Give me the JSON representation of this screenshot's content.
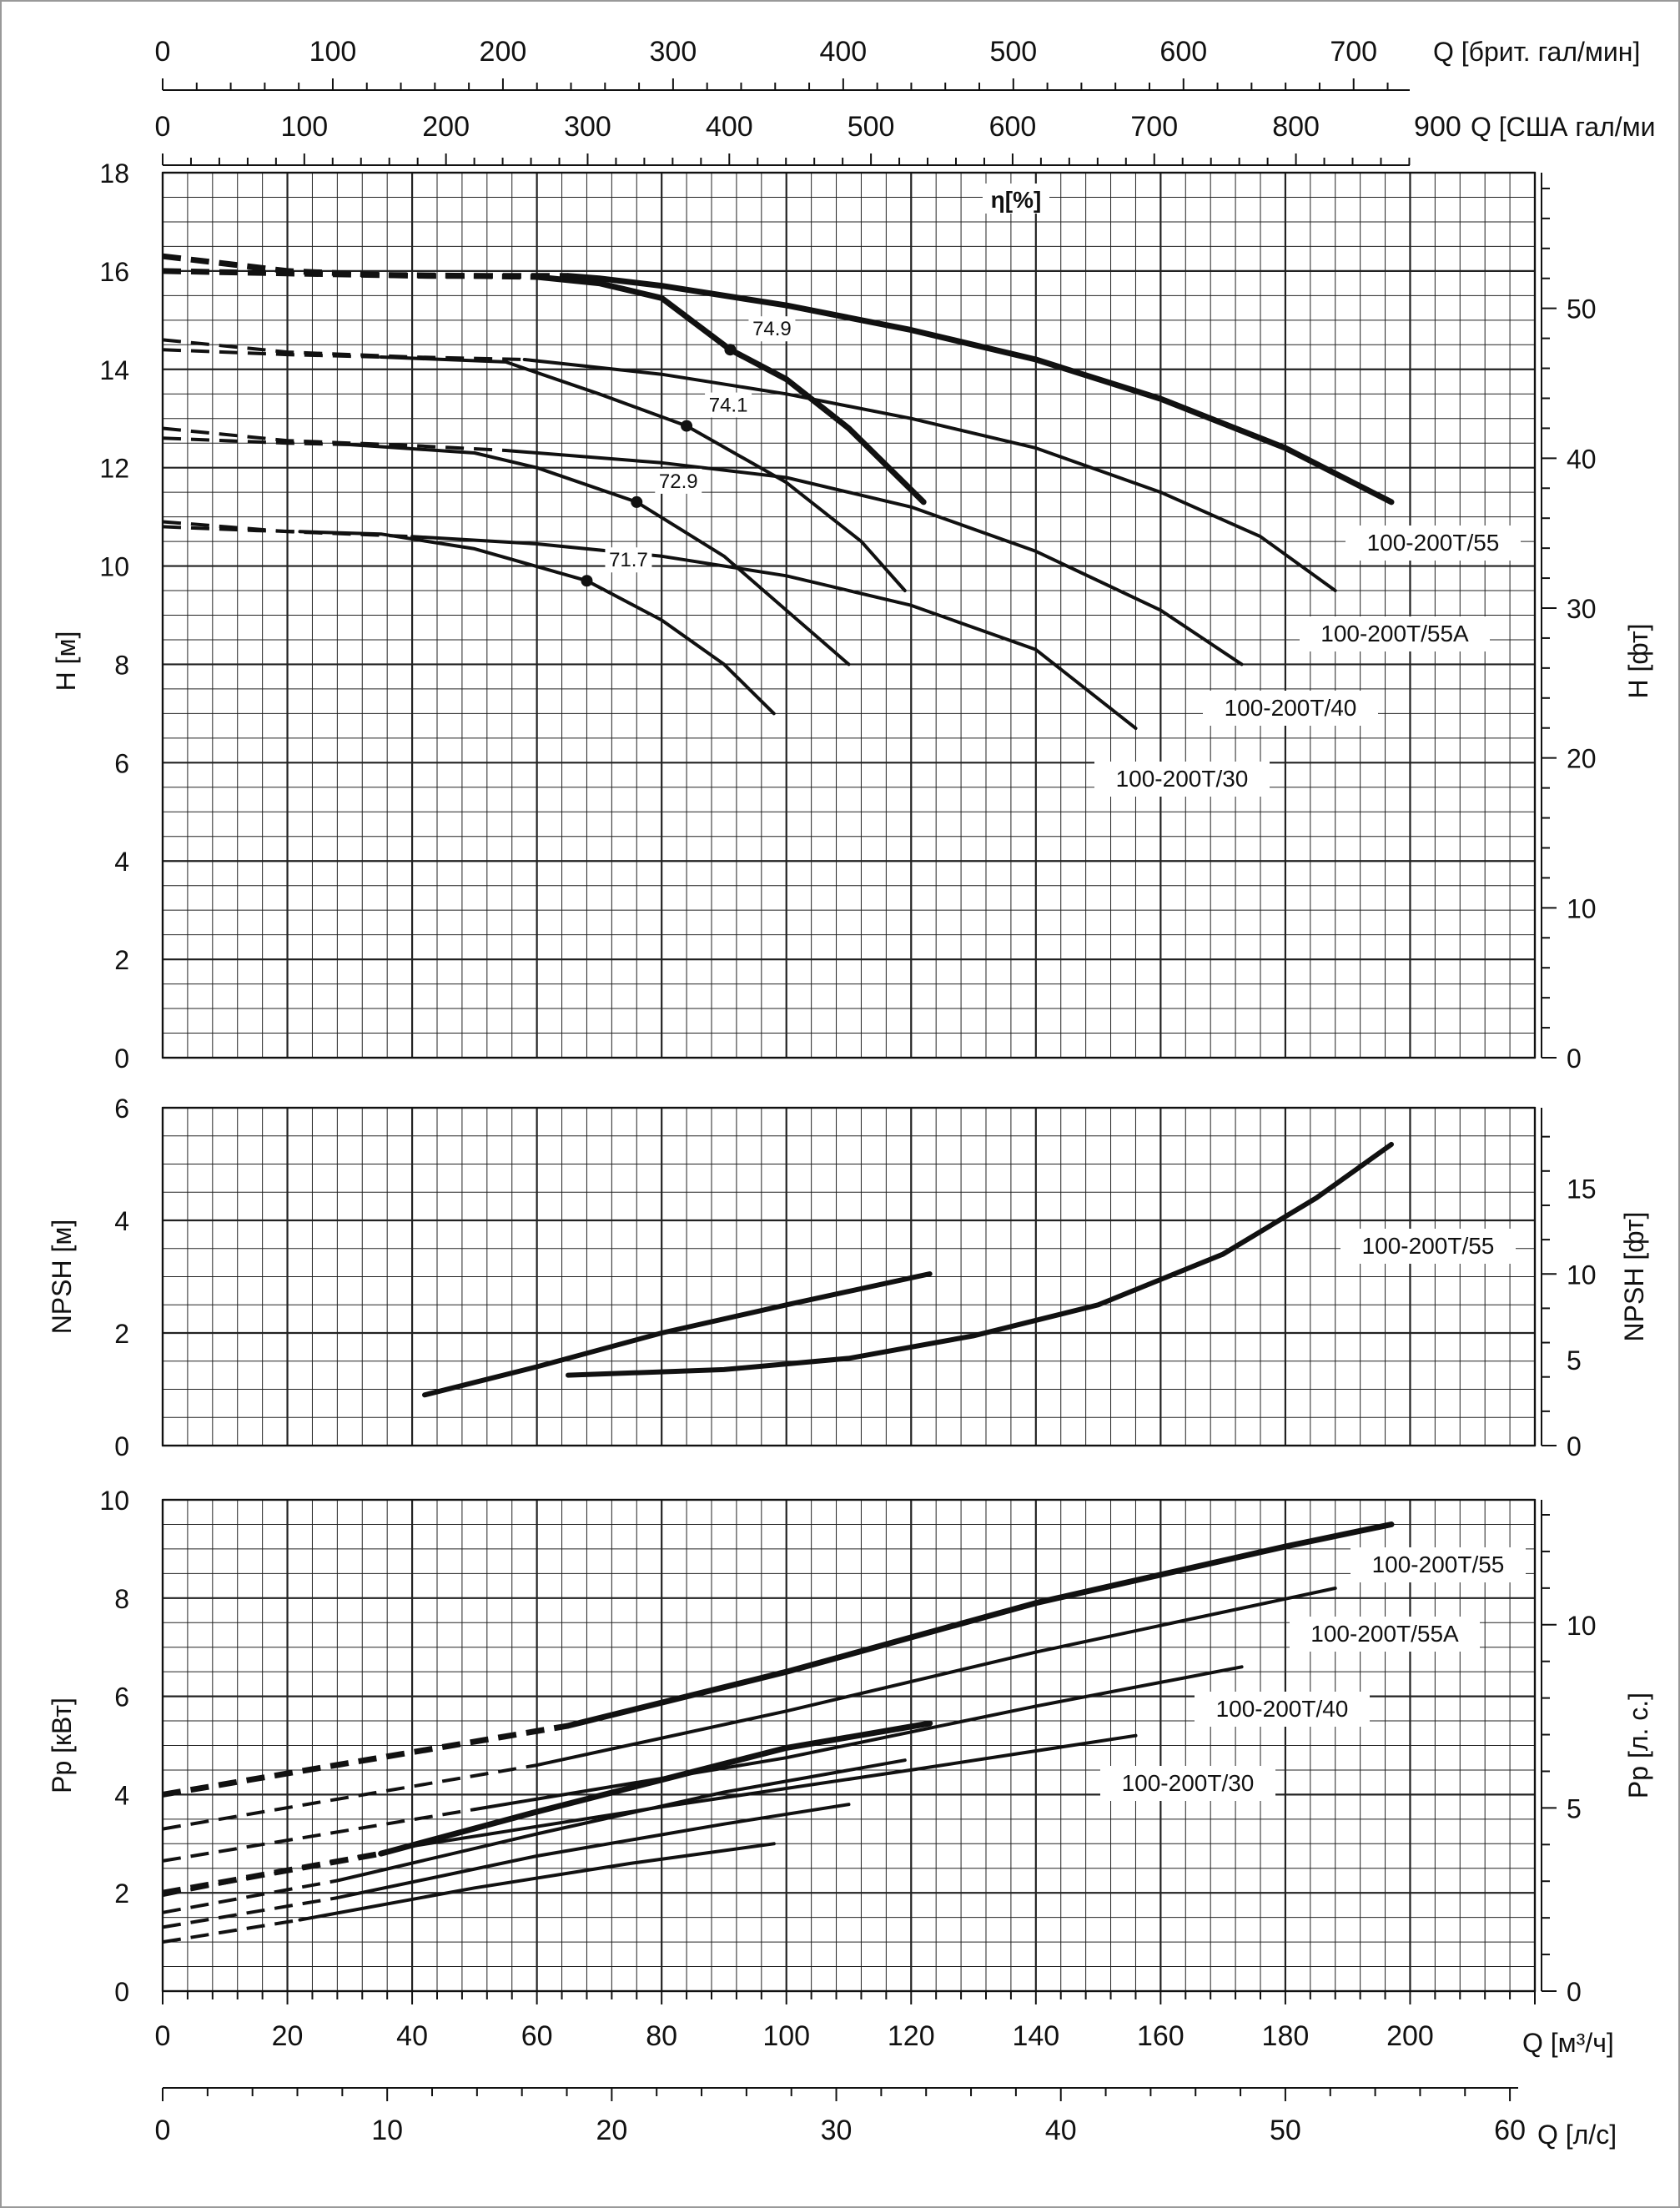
{
  "chart_data": {
    "type": "line",
    "top_axes": {
      "uk_gpm": {
        "label": "Q [брит. гал/мин]",
        "ticks": [
          "0",
          "100",
          "200",
          "300",
          "400",
          "500",
          "600",
          "700"
        ],
        "per_m3h": 3.666
      },
      "us_gpm": {
        "label": "Q [США гал/ми",
        "ticks": [
          "0",
          "100",
          "200",
          "300",
          "400",
          "500",
          "600",
          "700",
          "800",
          "900"
        ],
        "per_m3h": 4.403
      }
    },
    "bottom_axes": {
      "m3h": {
        "label": "Q [м³/ч]",
        "ticks": [
          "0",
          "20",
          "40",
          "60",
          "80",
          "100",
          "120",
          "140",
          "160",
          "180",
          "200"
        ],
        "xlim": [
          0,
          220
        ]
      },
      "ls": {
        "label": "Q [л/с]",
        "ticks": [
          "0",
          "10",
          "20",
          "30",
          "40",
          "50",
          "60"
        ]
      }
    },
    "head_chart": {
      "ylabel": "H [м]",
      "ylabel_right": "H [фт]",
      "ylim": [
        0,
        18
      ],
      "yticks": [
        "0",
        "2",
        "4",
        "6",
        "8",
        "10",
        "12",
        "14",
        "16",
        "18"
      ],
      "yticks_right": [
        "0",
        "10",
        "20",
        "30",
        "40",
        "50"
      ],
      "efficiency_label": "η[%]",
      "series": [
        {
          "name": "100-200T/55",
          "bold": true,
          "dash": [
            [
              0,
              16.0
            ],
            [
              20,
              15.95
            ],
            [
              43,
              15.9
            ],
            [
              65,
              15.9
            ]
          ],
          "solid": [
            [
              65,
              15.9
            ],
            [
              70,
              15.85
            ],
            [
              80,
              15.7
            ],
            [
              100,
              15.3
            ],
            [
              120,
              14.8
            ],
            [
              140,
              14.2
            ],
            [
              160,
              13.4
            ],
            [
              180,
              12.4
            ],
            [
              197,
              11.3
            ]
          ],
          "dash2": [
            [
              0,
              16.3
            ],
            [
              10,
              16.15
            ],
            [
              20,
              16.0
            ],
            [
              35,
              15.92
            ],
            [
              50,
              15.9
            ],
            [
              60,
              15.88
            ]
          ],
          "solid2": [
            [
              60,
              15.88
            ],
            [
              70,
              15.75
            ],
            [
              80,
              15.45
            ],
            [
              91,
              14.4
            ],
            [
              100,
              13.8
            ],
            [
              110,
              12.8
            ],
            [
              122,
              11.3
            ]
          ]
        },
        {
          "name": "100-200T/55A",
          "bold": false,
          "dash": [
            [
              0,
              14.6
            ],
            [
              20,
              14.35
            ],
            [
              40,
              14.25
            ],
            [
              58,
              14.2
            ]
          ],
          "solid": [
            [
              58,
              14.2
            ],
            [
              80,
              13.9
            ],
            [
              100,
              13.5
            ],
            [
              120,
              13.0
            ],
            [
              140,
              12.4
            ],
            [
              160,
              11.5
            ],
            [
              176,
              10.6
            ],
            [
              188,
              9.5
            ]
          ],
          "dash2": [
            [
              0,
              14.4
            ],
            [
              20,
              14.3
            ],
            [
              35,
              14.25
            ]
          ],
          "solid2": [
            [
              35,
              14.25
            ],
            [
              55,
              14.15
            ],
            [
              70,
              13.5
            ],
            [
              84,
              12.85
            ],
            [
              100,
              11.7
            ],
            [
              112,
              10.5
            ],
            [
              119,
              9.5
            ]
          ]
        },
        {
          "name": "100-200T/40",
          "bold": false,
          "dash": [
            [
              0,
              12.8
            ],
            [
              20,
              12.55
            ],
            [
              40,
              12.45
            ],
            [
              55,
              12.35
            ]
          ],
          "solid": [
            [
              55,
              12.35
            ],
            [
              80,
              12.1
            ],
            [
              100,
              11.8
            ],
            [
              120,
              11.2
            ],
            [
              140,
              10.3
            ],
            [
              160,
              9.1
            ],
            [
              173,
              8.0
            ]
          ],
          "dash2": [
            [
              0,
              12.6
            ],
            [
              20,
              12.5
            ],
            [
              30,
              12.47
            ]
          ],
          "solid2": [
            [
              30,
              12.47
            ],
            [
              50,
              12.3
            ],
            [
              60,
              12.0
            ],
            [
              76,
              11.3
            ],
            [
              90,
              10.2
            ],
            [
              100,
              9.1
            ],
            [
              110,
              8.0
            ]
          ]
        },
        {
          "name": "100-200T/30",
          "bold": false,
          "dash": [
            [
              0,
              10.9
            ],
            [
              20,
              10.7
            ],
            [
              40,
              10.6
            ]
          ],
          "solid": [
            [
              40,
              10.6
            ],
            [
              60,
              10.45
            ],
            [
              80,
              10.2
            ],
            [
              100,
              9.8
            ],
            [
              120,
              9.2
            ],
            [
              140,
              8.3
            ],
            [
              156,
              6.7
            ]
          ],
          "dash2": [
            [
              0,
              10.8
            ],
            [
              15,
              10.72
            ],
            [
              22,
              10.7
            ]
          ],
          "solid2": [
            [
              22,
              10.7
            ],
            [
              35,
              10.65
            ],
            [
              50,
              10.35
            ],
            [
              68,
              9.7
            ],
            [
              80,
              8.9
            ],
            [
              90,
              8.0
            ],
            [
              98,
              7.0
            ]
          ]
        }
      ],
      "efficiency_points": [
        {
          "label": "74.9",
          "x": 91,
          "y": 14.4
        },
        {
          "label": "74.1",
          "x": 84,
          "y": 12.85
        },
        {
          "label": "72.9",
          "x": 76,
          "y": 11.3
        },
        {
          "label": "71.7",
          "x": 68,
          "y": 9.7
        }
      ],
      "curve_labels": [
        "100-200T/55",
        "100-200T/55A",
        "100-200T/40",
        "100-200T/30"
      ]
    },
    "npsh_chart": {
      "ylabel": "NPSH [м]",
      "ylabel_right": "NPSH [фт]",
      "ylim": [
        0,
        6
      ],
      "yticks": [
        "0",
        "2",
        "4",
        "6"
      ],
      "yticks_right": [
        "0",
        "5",
        "10",
        "15"
      ],
      "series": [
        {
          "name": "100-200T/55",
          "points": [
            [
              42,
              0.9
            ],
            [
              60,
              1.4
            ],
            [
              80,
              2.0
            ],
            [
              100,
              2.5
            ],
            [
              123,
              3.05
            ]
          ]
        },
        {
          "name": "",
          "points": [
            [
              65,
              1.25
            ],
            [
              90,
              1.35
            ],
            [
              110,
              1.55
            ],
            [
              130,
              1.95
            ],
            [
              150,
              2.5
            ],
            [
              170,
              3.4
            ],
            [
              185,
              4.4
            ],
            [
              197,
              5.35
            ]
          ]
        }
      ],
      "curve_label": "100-200T/55"
    },
    "power_chart": {
      "ylabel": "Pp [кВт]",
      "ylabel_right": "Pp [л. с.]",
      "ylim": [
        0,
        10
      ],
      "yticks": [
        "0",
        "2",
        "4",
        "6",
        "8",
        "10"
      ],
      "yticks_right": [
        "0",
        "5",
        "10"
      ],
      "series": [
        {
          "name": "100-200T/55",
          "bold": true,
          "dash": [
            [
              0,
              4.0
            ],
            [
              65,
              5.4
            ]
          ],
          "solid": [
            [
              65,
              5.4
            ],
            [
              100,
              6.5
            ],
            [
              140,
              7.9
            ],
            [
              180,
              9.05
            ],
            [
              197,
              9.5
            ]
          ]
        },
        {
          "name": "100-200T/55A",
          "bold": false,
          "dash": [
            [
              0,
              3.3
            ],
            [
              60,
              4.6
            ]
          ],
          "solid": [
            [
              60,
              4.6
            ],
            [
              100,
              5.7
            ],
            [
              140,
              6.9
            ],
            [
              188,
              8.2
            ]
          ]
        },
        {
          "name": "100-200T/40",
          "bold": false,
          "dash": [
            [
              0,
              2.65
            ],
            [
              50,
              3.7
            ]
          ],
          "solid": [
            [
              50,
              3.7
            ],
            [
              100,
              4.75
            ],
            [
              140,
              5.8
            ],
            [
              173,
              6.6
            ]
          ]
        },
        {
          "name": "100-200T/30",
          "bold": false,
          "dash": [
            [
              0,
              1.95
            ],
            [
              40,
              2.95
            ]
          ],
          "solid": [
            [
              40,
              2.95
            ],
            [
              80,
              3.75
            ],
            [
              120,
              4.5
            ],
            [
              156,
              5.2
            ]
          ]
        },
        {
          "name": "",
          "bold": true,
          "dash": [
            [
              0,
              2.0
            ],
            [
              35,
              2.8
            ]
          ],
          "solid": [
            [
              35,
              2.8
            ],
            [
              60,
              3.65
            ],
            [
              80,
              4.3
            ],
            [
              100,
              4.95
            ],
            [
              123,
              5.45
            ]
          ]
        },
        {
          "name": "",
          "bold": false,
          "dash": [
            [
              0,
              1.6
            ],
            [
              28,
              2.25
            ]
          ],
          "solid": [
            [
              28,
              2.25
            ],
            [
              60,
              3.2
            ],
            [
              90,
              4.05
            ],
            [
              119,
              4.7
            ]
          ]
        },
        {
          "name": "",
          "bold": false,
          "dash": [
            [
              0,
              1.3
            ],
            [
              28,
              1.9
            ]
          ],
          "solid": [
            [
              28,
              1.9
            ],
            [
              60,
              2.75
            ],
            [
              90,
              3.4
            ],
            [
              110,
              3.8
            ]
          ]
        },
        {
          "name": "",
          "bold": false,
          "dash": [
            [
              0,
              1.0
            ],
            [
              22,
              1.45
            ]
          ],
          "solid": [
            [
              22,
              1.45
            ],
            [
              50,
              2.1
            ],
            [
              75,
              2.6
            ],
            [
              98,
              3.0
            ]
          ]
        }
      ],
      "curve_labels": [
        "100-200T/55",
        "100-200T/55A",
        "100-200T/40",
        "100-200T/30"
      ]
    }
  }
}
